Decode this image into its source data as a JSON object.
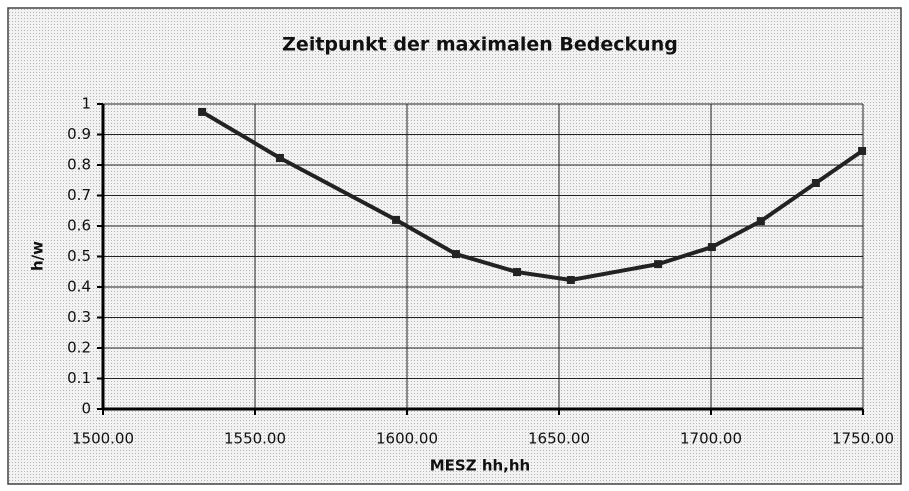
{
  "chart_data": {
    "type": "line",
    "title": "Zeitpunkt der maximalen Bedeckung",
    "x_label": "MESZ hh,hh",
    "y_label": "h/w",
    "x": [
      1532.6,
      1558.2,
      1596.4,
      1616.1,
      1636.2,
      1653.9,
      1682.6,
      1700.3,
      1716.4,
      1734.5,
      1749.7
    ],
    "series": [
      {
        "name": "h/w",
        "color": "#222222",
        "values": [
          0.974,
          0.823,
          0.62,
          0.508,
          0.449,
          0.423,
          0.475,
          0.531,
          0.616,
          0.741,
          0.846
        ]
      }
    ],
    "xlim": [
      1500,
      1750
    ],
    "xticks": [
      {
        "value": 1500,
        "label": "1500.00"
      },
      {
        "value": 1550,
        "label": "1550.00"
      },
      {
        "value": 1600,
        "label": "1600.00"
      },
      {
        "value": 1650,
        "label": "1650.00"
      },
      {
        "value": 1700,
        "label": "1700.00"
      },
      {
        "value": 1750,
        "label": "1750.00"
      }
    ],
    "ylim": [
      0,
      1
    ],
    "yticks": [
      0,
      0.1,
      0.2,
      0.3,
      0.4,
      0.5,
      0.6,
      0.7,
      0.8,
      0.9,
      1
    ],
    "grid": true
  }
}
